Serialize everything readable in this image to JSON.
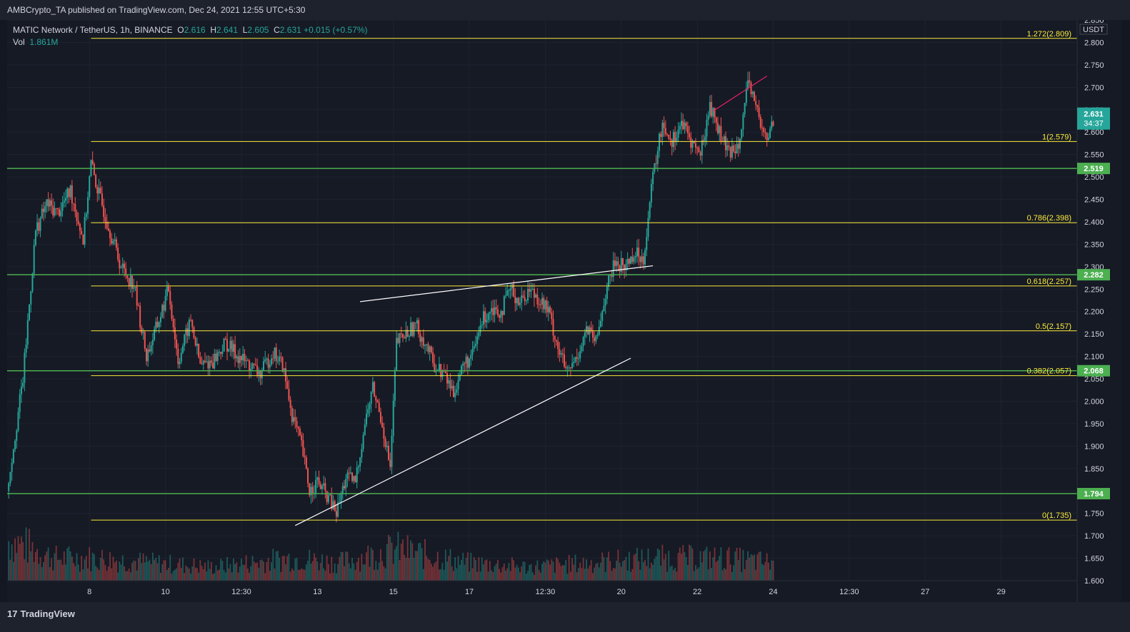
{
  "header": {
    "publisher": "AMBCrypto_TA published on TradingView.com, Dec 24, 2021 12:55 UTC+5:30"
  },
  "legend": {
    "symbol": "MATIC Network / TetherUS, 1h, BINANCE",
    "open_label": "O",
    "open": "2.616",
    "high_label": "H",
    "high": "2.641",
    "low_label": "L",
    "low": "2.605",
    "close_label": "C",
    "close": "2.631",
    "change": "+0.015 (+0.57%)",
    "vol_label": "Vol",
    "vol": "1.861M"
  },
  "footer": {
    "brand": "TradingView",
    "logo": "tradingview-logo-icon"
  },
  "colors": {
    "background": "#131722",
    "panel": "#161a25",
    "grid": "#1f2330",
    "up": "#26a69a",
    "down": "#ef5350",
    "fib": "#fbeb3b",
    "level": "#4caf50",
    "trend": "#ffffff",
    "highlight": "#e91e63",
    "axis_text": "#d1d4dc"
  },
  "chart_data": {
    "type": "line",
    "subtype": "candlestick_with_volume",
    "title": "MATIC Network / TetherUS, 1h, BINANCE",
    "currency": "USDT",
    "ylim": [
      1.6,
      2.85
    ],
    "y_ticks": [
      "1.600",
      "1.650",
      "1.700",
      "1.750",
      "1.800",
      "1.850",
      "1.900",
      "1.950",
      "2.000",
      "2.050",
      "2.100",
      "2.150",
      "2.200",
      "2.250",
      "2.300",
      "2.350",
      "2.400",
      "2.450",
      "2.500",
      "2.550",
      "2.600",
      "2.650",
      "2.700",
      "2.750",
      "2.800",
      "2.850"
    ],
    "x_ticks": [
      {
        "label": "8",
        "t": 42
      },
      {
        "label": "10",
        "t": 90
      },
      {
        "label": "12:30",
        "t": 138
      },
      {
        "label": "13",
        "t": 186
      },
      {
        "label": "15",
        "t": 234
      },
      {
        "label": "17",
        "t": 282
      },
      {
        "label": "12:30",
        "t": 330
      },
      {
        "label": "20",
        "t": 378
      },
      {
        "label": "22",
        "t": 426
      },
      {
        "label": "24",
        "t": 474
      },
      {
        "label": "12:30",
        "t": 522
      },
      {
        "label": "27",
        "t": 570
      },
      {
        "label": "29",
        "t": 618
      }
    ],
    "x_range": [
      -10,
      666
    ],
    "fib_levels": [
      {
        "label": "1.272(2.809)",
        "value": 2.809
      },
      {
        "label": "1(2.579)",
        "value": 2.579
      },
      {
        "label": "0.786(2.398)",
        "value": 2.398
      },
      {
        "label": "0.618(2.257)",
        "value": 2.257
      },
      {
        "label": "0.5(2.157)",
        "value": 2.157
      },
      {
        "label": "0.382(2.057)",
        "value": 2.057
      },
      {
        "label": "0(1.735)",
        "value": 1.735
      }
    ],
    "fib_start_t": 43,
    "horizontal_levels": [
      {
        "label": "2.519",
        "value": 2.519
      },
      {
        "label": "2.282",
        "value": 2.282
      },
      {
        "label": "2.068",
        "value": 2.068
      },
      {
        "label": "1.794",
        "value": 1.794
      }
    ],
    "current_price": {
      "label": "2.631",
      "value": 2.631,
      "countdown": "34:37"
    },
    "trendlines": [
      {
        "name": "upper-trendline",
        "from": [
          213,
          2.222
        ],
        "to": [
          398,
          2.302
        ]
      },
      {
        "name": "lower-trendline",
        "from": [
          172,
          1.723
        ],
        "to": [
          384,
          2.096
        ]
      },
      {
        "name": "peak-trendline",
        "from": [
          436,
          2.647
        ],
        "to": [
          470,
          2.725
        ]
      }
    ],
    "price_path": [
      [
        -10,
        1.8
      ],
      [
        0,
        2.05
      ],
      [
        8,
        2.38
      ],
      [
        15,
        2.44
      ],
      [
        22,
        2.42
      ],
      [
        30,
        2.47
      ],
      [
        38,
        2.36
      ],
      [
        43,
        2.53
      ],
      [
        48,
        2.46
      ],
      [
        55,
        2.38
      ],
      [
        62,
        2.3
      ],
      [
        70,
        2.26
      ],
      [
        78,
        2.1
      ],
      [
        85,
        2.17
      ],
      [
        92,
        2.25
      ],
      [
        98,
        2.09
      ],
      [
        106,
        2.18
      ],
      [
        112,
        2.08
      ],
      [
        120,
        2.09
      ],
      [
        128,
        2.13
      ],
      [
        136,
        2.1
      ],
      [
        143,
        2.08
      ],
      [
        150,
        2.06
      ],
      [
        158,
        2.11
      ],
      [
        164,
        2.08
      ],
      [
        170,
        1.97
      ],
      [
        176,
        1.9
      ],
      [
        181,
        1.8
      ],
      [
        186,
        1.82
      ],
      [
        192,
        1.79
      ],
      [
        198,
        1.75
      ],
      [
        204,
        1.83
      ],
      [
        210,
        1.82
      ],
      [
        216,
        1.95
      ],
      [
        221,
        2.03
      ],
      [
        227,
        1.95
      ],
      [
        232,
        1.85
      ],
      [
        236,
        2.13
      ],
      [
        242,
        2.15
      ],
      [
        248,
        2.17
      ],
      [
        254,
        2.13
      ],
      [
        260,
        2.08
      ],
      [
        266,
        2.06
      ],
      [
        272,
        2.02
      ],
      [
        278,
        2.08
      ],
      [
        284,
        2.1
      ],
      [
        290,
        2.18
      ],
      [
        296,
        2.21
      ],
      [
        302,
        2.2
      ],
      [
        308,
        2.25
      ],
      [
        314,
        2.22
      ],
      [
        320,
        2.25
      ],
      [
        326,
        2.23
      ],
      [
        332,
        2.2
      ],
      [
        338,
        2.12
      ],
      [
        344,
        2.06
      ],
      [
        350,
        2.1
      ],
      [
        356,
        2.16
      ],
      [
        362,
        2.13
      ],
      [
        368,
        2.24
      ],
      [
        374,
        2.31
      ],
      [
        380,
        2.3
      ],
      [
        386,
        2.33
      ],
      [
        392,
        2.32
      ],
      [
        398,
        2.5
      ],
      [
        404,
        2.62
      ],
      [
        410,
        2.58
      ],
      [
        416,
        2.62
      ],
      [
        422,
        2.58
      ],
      [
        428,
        2.55
      ],
      [
        434,
        2.66
      ],
      [
        440,
        2.6
      ],
      [
        446,
        2.55
      ],
      [
        452,
        2.58
      ],
      [
        458,
        2.7
      ],
      [
        462,
        2.68
      ],
      [
        466,
        2.61
      ],
      [
        470,
        2.58
      ],
      [
        474,
        2.63
      ]
    ],
    "volume_path": [
      [
        -10,
        0.9
      ],
      [
        0,
        0.8
      ],
      [
        20,
        0.5
      ],
      [
        43,
        0.5
      ],
      [
        80,
        0.4
      ],
      [
        120,
        0.3
      ],
      [
        170,
        0.5
      ],
      [
        200,
        0.4
      ],
      [
        236,
        0.7
      ],
      [
        280,
        0.4
      ],
      [
        320,
        0.3
      ],
      [
        360,
        0.4
      ],
      [
        400,
        0.5
      ],
      [
        440,
        0.5
      ],
      [
        474,
        0.4
      ]
    ]
  }
}
